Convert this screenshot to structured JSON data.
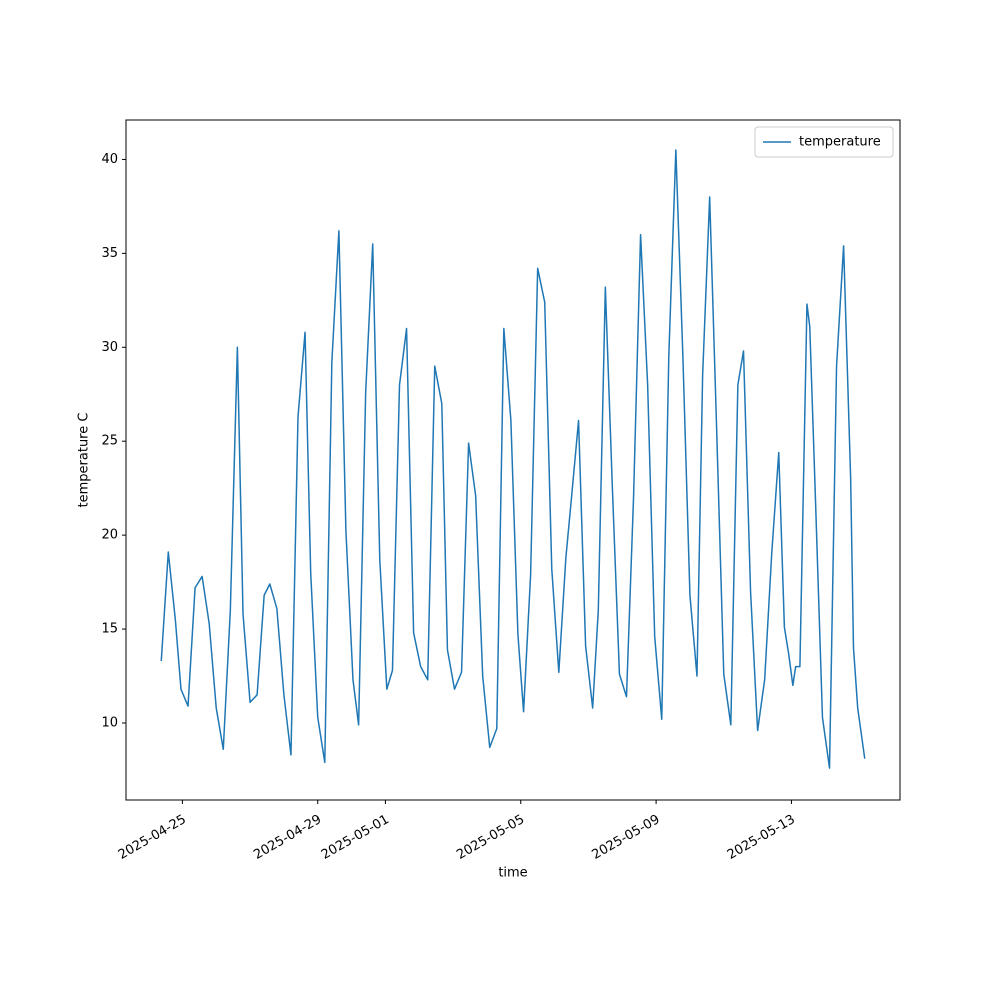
{
  "chart_data": {
    "type": "line",
    "xlabel": "time",
    "ylabel": "temperature C",
    "x": [
      "2025-04-24 09:00",
      "2025-04-24 14:00",
      "2025-04-24 19:00",
      "2025-04-24 23:00",
      "2025-04-25 04:00",
      "2025-04-25 09:00",
      "2025-04-25 14:00",
      "2025-04-25 19:00",
      "2025-04-26 00:00",
      "2025-04-26 05:00",
      "2025-04-26 10:00",
      "2025-04-26 15:00",
      "2025-04-26 19:00",
      "2025-04-27 00:00",
      "2025-04-27 05:00",
      "2025-04-27 10:00",
      "2025-04-27 14:00",
      "2025-04-27 19:00",
      "2025-04-28 00:00",
      "2025-04-28 05:00",
      "2025-04-28 10:00",
      "2025-04-28 15:00",
      "2025-04-28 19:00",
      "2025-04-29 00:00",
      "2025-04-29 05:00",
      "2025-04-29 10:00",
      "2025-04-29 15:00",
      "2025-04-29 20:00",
      "2025-04-30 01:00",
      "2025-04-30 05:00",
      "2025-04-30 10:00",
      "2025-04-30 15:00",
      "2025-04-30 20:00",
      "2025-05-01 01:00",
      "2025-05-01 05:00",
      "2025-05-01 10:00",
      "2025-05-01 15:00",
      "2025-05-01 20:00",
      "2025-05-02 01:00",
      "2025-05-02 06:00",
      "2025-05-02 11:00",
      "2025-05-02 16:00",
      "2025-05-02 20:00",
      "2025-05-03 01:00",
      "2025-05-03 06:00",
      "2025-05-03 11:00",
      "2025-05-03 16:00",
      "2025-05-03 21:00",
      "2025-05-04 02:00",
      "2025-05-04 07:00",
      "2025-05-04 12:00",
      "2025-05-04 17:00",
      "2025-05-04 22:00",
      "2025-05-05 02:00",
      "2025-05-05 07:00",
      "2025-05-05 12:00",
      "2025-05-05 17:00",
      "2025-05-05 22:00",
      "2025-05-06 03:00",
      "2025-05-06 08:00",
      "2025-05-06 12:00",
      "2025-05-06 17:00",
      "2025-05-06 22:00",
      "2025-05-07 03:00",
      "2025-05-07 07:00",
      "2025-05-07 12:00",
      "2025-05-07 17:00",
      "2025-05-07 22:00",
      "2025-05-08 03:00",
      "2025-05-08 08:00",
      "2025-05-08 13:00",
      "2025-05-08 18:00",
      "2025-05-08 23:00",
      "2025-05-09 04:00",
      "2025-05-09 09:00",
      "2025-05-09 14:00",
      "2025-05-09 19:00",
      "2025-05-10 00:00",
      "2025-05-10 05:00",
      "2025-05-10 09:00",
      "2025-05-10 14:00",
      "2025-05-10 19:00",
      "2025-05-11 00:00",
      "2025-05-11 05:00",
      "2025-05-11 10:00",
      "2025-05-11 14:00",
      "2025-05-11 19:00",
      "2025-05-12 00:00",
      "2025-05-12 05:00",
      "2025-05-12 10:00",
      "2025-05-12 15:00",
      "2025-05-12 19:00",
      "2025-05-12 22:00",
      "2025-05-13 01:00",
      "2025-05-13 03:00",
      "2025-05-13 06:00",
      "2025-05-13 11:00",
      "2025-05-13 13:00",
      "2025-05-13 17:00",
      "2025-05-13 22:00",
      "2025-05-14 03:00",
      "2025-05-14 08:00",
      "2025-05-14 13:00",
      "2025-05-14 18:00",
      "2025-05-14 20:00",
      "2025-05-14 23:00",
      "2025-05-15 04:00"
    ],
    "series": [
      {
        "name": "temperature",
        "color": "#1f77b4",
        "values": [
          13.3,
          19.1,
          15.5,
          11.8,
          10.9,
          17.2,
          17.8,
          15.3,
          10.8,
          8.6,
          16,
          30,
          15.8,
          11.1,
          11.5,
          16.8,
          17.4,
          16.1,
          11.5,
          8.3,
          26.3,
          30.8,
          18,
          10.3,
          7.9,
          29.2,
          36.2,
          20.2,
          12.3,
          9.9,
          27.6,
          35.5,
          18.7,
          11.8,
          12.8,
          28,
          31,
          14.8,
          13,
          12.3,
          29,
          27,
          13.9,
          11.8,
          12.7,
          24.9,
          22.1,
          12.5,
          8.7,
          9.7,
          31,
          26.1,
          14.7,
          10.6,
          17.9,
          34.2,
          32.4,
          18.2,
          12.7,
          18.8,
          22,
          26.1,
          14.1,
          10.8,
          16,
          33.2,
          22.5,
          12.6,
          11.4,
          22,
          36,
          28,
          14.6,
          10.2,
          29.5,
          40.5,
          29.5,
          16.8,
          12.5,
          28.5,
          38,
          25.5,
          12.6,
          9.9,
          28,
          29.8,
          17,
          9.6,
          12.3,
          19,
          24.4,
          15.1,
          13.7,
          12,
          13,
          13,
          32.3,
          31.1,
          22,
          10.3,
          7.6,
          29,
          35.4,
          23,
          14,
          10.8,
          8.1
        ]
      }
    ],
    "xlim": [
      "2025-04-23 08:00",
      "2025-05-16 05:00"
    ],
    "xticks": [
      "2025-04-25",
      "2025-04-29",
      "2025-05-01",
      "2025-05-05",
      "2025-05-09",
      "2025-05-13"
    ],
    "ylim": [
      5.9,
      42.1
    ],
    "yticks": [
      10,
      15,
      20,
      25,
      30,
      35,
      40
    ],
    "legend": "upper right",
    "grid": false
  }
}
